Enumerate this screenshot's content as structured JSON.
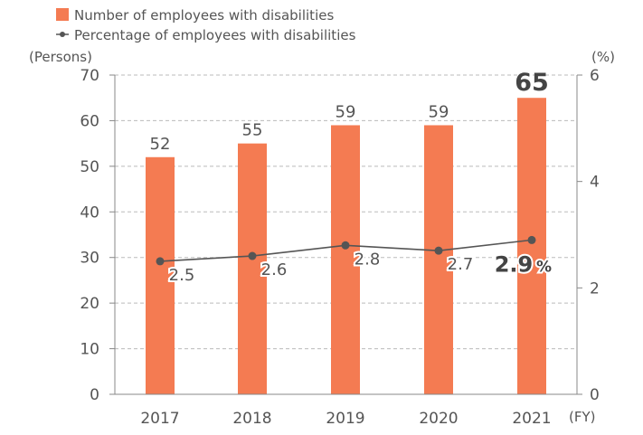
{
  "chart_data": {
    "type": "bar+line",
    "categories": [
      "2017",
      "2018",
      "2019",
      "2020",
      "2021"
    ],
    "x_unit": "(FY)",
    "series": [
      {
        "name": "Number of employees with disabilities",
        "type": "bar",
        "axis": "left",
        "values": [
          52,
          55,
          59,
          59,
          65
        ],
        "labels": [
          "52",
          "55",
          "59",
          "59",
          "65"
        ],
        "color": "#F47B52"
      },
      {
        "name": "Percentage of employees with disabilities",
        "type": "line",
        "axis": "right",
        "values": [
          2.5,
          2.6,
          2.8,
          2.7,
          2.9
        ],
        "labels": [
          "2.5",
          "2.6",
          "2.8",
          "2.7",
          "2.9"
        ],
        "highlight_suffix": "%",
        "color": "#555555"
      }
    ],
    "y_left": {
      "unit": "(Persons)",
      "ylim": [
        0,
        70
      ],
      "ticks": [
        "0",
        "10",
        "20",
        "30",
        "40",
        "50",
        "60",
        "70"
      ]
    },
    "y_right": {
      "unit": "(%)",
      "ylim": [
        0,
        6
      ],
      "ticks": [
        "0",
        "2",
        "4",
        "6"
      ]
    },
    "grid": true,
    "legend_position": "top-left",
    "colors": {
      "bar": "#F47B52",
      "line": "#555555",
      "grid": "#bbbbbb",
      "text": "#555555",
      "highlight_text": "#444444"
    }
  }
}
